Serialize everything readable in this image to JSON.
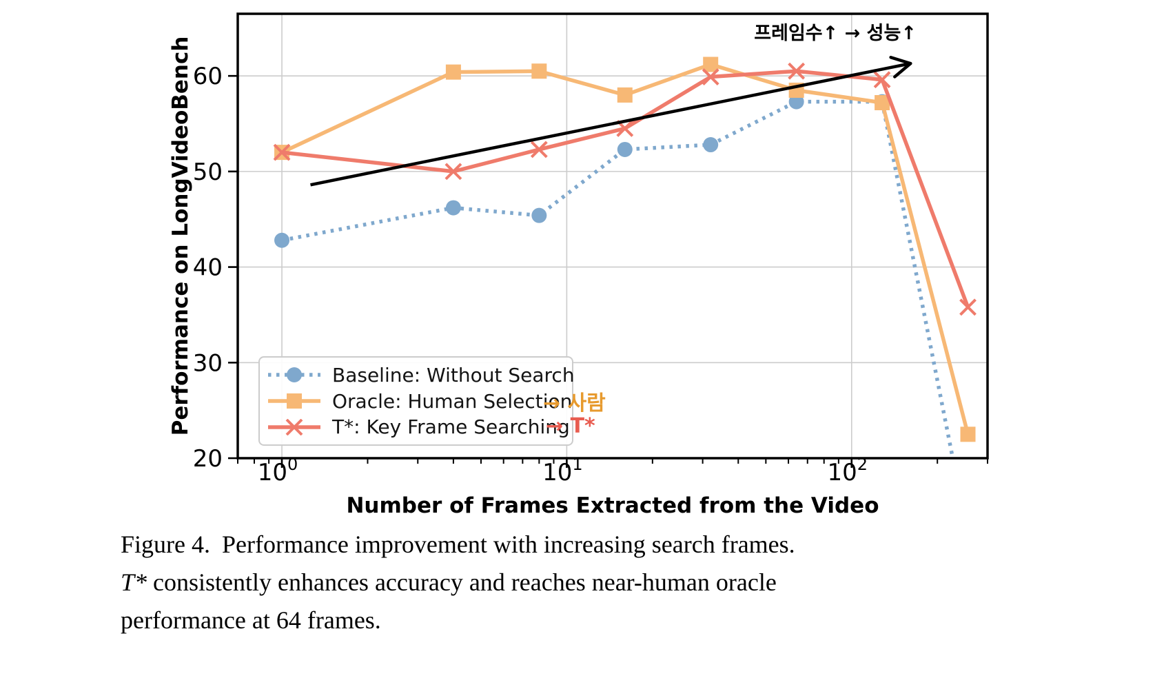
{
  "figure": {
    "caption": {
      "label": "Figure 4.",
      "line1_rest": "Performance improvement with increasing search frames.",
      "line2_italic": "T*",
      "line2_rest": " consistently enhances accuracy and reaches near-human oracle",
      "line3": "performance at 64 frames."
    }
  },
  "chart_data": {
    "type": "line",
    "xscale": "log",
    "title": "",
    "xlabel": "Number of Frames Extracted from the Video",
    "ylabel": "Performance on LongVideoBench",
    "xlim": [
      0.7,
      300
    ],
    "ylim": [
      20,
      66.5
    ],
    "xticks": [
      1,
      10,
      100
    ],
    "yticks": [
      20,
      30,
      40,
      50,
      60
    ],
    "grid": true,
    "grid_color": "#cccccc",
    "legend_position": "lower-left",
    "x": [
      1,
      4,
      8,
      16,
      32,
      64,
      128,
      256
    ],
    "series": [
      {
        "name": "Baseline: Without Search",
        "color": "#7FA8CD",
        "marker": "circle",
        "line": "dotted",
        "values": [
          42.8,
          46.2,
          45.4,
          52.3,
          52.8,
          57.3,
          57.3,
          12.0
        ]
      },
      {
        "name": "Oracle: Human Selection",
        "color": "#F7B875",
        "marker": "square",
        "line": "solid",
        "values": [
          52.0,
          60.4,
          60.5,
          58.0,
          61.2,
          58.5,
          57.2,
          22.5
        ]
      },
      {
        "name": "T*: Key Frame Searching",
        "color": "#EF7B6B",
        "marker": "x",
        "line": "solid",
        "values": [
          52.0,
          50.0,
          52.3,
          54.5,
          59.9,
          60.5,
          59.6,
          35.8
        ]
      }
    ],
    "trend_arrow": {
      "from_x": 1.26,
      "from_y": 48.6,
      "to_x": 161,
      "to_y": 61.3,
      "color": "#000000"
    },
    "annotations": {
      "top_right": {
        "text": "프레임수↑ → 성능↑",
        "color": "#000000"
      },
      "legend_oracle": {
        "text": "→ 사람",
        "color": "#E79A2E"
      },
      "legend_tstar": {
        "text": "→ T*",
        "color": "#E85C50"
      }
    }
  }
}
